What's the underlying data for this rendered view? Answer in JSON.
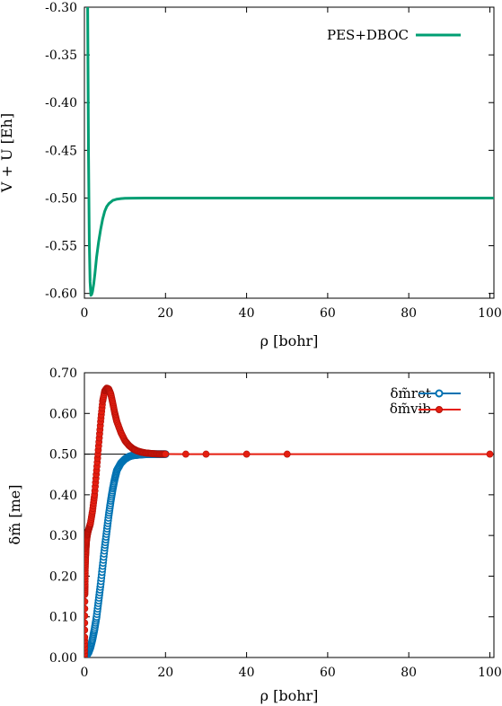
{
  "colors": {
    "pes": "#009e73",
    "rot": "#0072b2",
    "vib": "#e51e10",
    "axis": "#000000",
    "ref_line": "#000000"
  },
  "chart_data": [
    {
      "type": "line",
      "title": "",
      "xlabel": "ρ [bohr]",
      "ylabel": "V + U [Eh]",
      "xlim": [
        0,
        101
      ],
      "ylim": [
        -0.605,
        -0.3
      ],
      "xticks": [
        0,
        20,
        40,
        60,
        80,
        100
      ],
      "xtick_labels": [
        "0",
        "20",
        "40",
        "60",
        "80",
        "100"
      ],
      "yticks": [
        -0.3,
        -0.35,
        -0.4,
        -0.45,
        -0.5,
        -0.55,
        -0.6
      ],
      "ytick_labels": [
        "-0.30",
        "-0.35",
        "-0.40",
        "-0.45",
        "-0.50",
        "-0.55",
        "-0.60"
      ],
      "grid": false,
      "legend": "top-right",
      "series": [
        {
          "name": "PES+DBOC",
          "x": [
            0.8,
            1.0,
            1.2,
            1.4,
            1.6,
            1.8,
            2.0,
            2.3,
            2.6,
            3.0,
            3.5,
            4.0,
            4.5,
            5.0,
            5.5,
            6.0,
            7.0,
            8.0,
            9.0,
            10.0,
            12.0,
            15.0,
            20.0,
            30.0,
            40.0,
            50.0,
            60.0,
            70.0,
            80.0,
            90.0,
            100.0,
            101.0
          ],
          "y": [
            -0.3,
            -0.45,
            -0.545,
            -0.588,
            -0.602,
            -0.601,
            -0.598,
            -0.59,
            -0.579,
            -0.562,
            -0.546,
            -0.533,
            -0.522,
            -0.514,
            -0.509,
            -0.506,
            -0.5025,
            -0.5012,
            -0.5006,
            -0.5003,
            -0.5001,
            -0.5,
            -0.5,
            -0.5,
            -0.5,
            -0.5,
            -0.5,
            -0.5,
            -0.5,
            -0.5,
            -0.5,
            -0.5
          ]
        }
      ]
    },
    {
      "type": "line",
      "title": "",
      "xlabel": "ρ [bohr]",
      "ylabel": "δm̃ [me]",
      "xlim": [
        0,
        101
      ],
      "ylim": [
        0,
        0.7
      ],
      "xticks": [
        0,
        20,
        40,
        60,
        80,
        100
      ],
      "xtick_labels": [
        "0",
        "20",
        "40",
        "60",
        "80",
        "100"
      ],
      "yticks": [
        0,
        0.1,
        0.2,
        0.3,
        0.4,
        0.5,
        0.6,
        0.7
      ],
      "ytick_labels": [
        "0.00",
        "0.10",
        "0.20",
        "0.30",
        "0.40",
        "0.50",
        "0.60",
        "0.70"
      ],
      "grid": false,
      "legend": "top-right",
      "reference_line_y": 0.5,
      "series": [
        {
          "name": "δm̃rot",
          "marker": "open-circle",
          "x": [
            0.05,
            0.3,
            0.6,
            1.0,
            1.5,
            2.0,
            2.5,
            3.0,
            3.5,
            4.0,
            4.5,
            5.0,
            5.5,
            6.0,
            6.5,
            7.0,
            7.5,
            8.0,
            9.0,
            10.0,
            11.0,
            12.0,
            13.0,
            14.0,
            15.0,
            16.0,
            17.0,
            18.0,
            19.0,
            20.0
          ],
          "y": [
            0.0,
            0.002,
            0.006,
            0.012,
            0.025,
            0.045,
            0.07,
            0.1,
            0.14,
            0.18,
            0.225,
            0.27,
            0.31,
            0.35,
            0.385,
            0.415,
            0.44,
            0.46,
            0.478,
            0.488,
            0.494,
            0.497,
            0.498,
            0.499,
            0.4995,
            0.5,
            0.5,
            0.5,
            0.5,
            0.5
          ]
        },
        {
          "name": "δm̃vib",
          "marker": "filled-circle",
          "x": [
            0.02,
            0.05,
            0.1,
            0.15,
            0.2,
            0.3,
            0.4,
            0.5,
            0.7,
            0.9,
            1.2,
            1.5,
            2.0,
            2.5,
            3.0,
            3.5,
            4.0,
            4.5,
            5.0,
            5.5,
            6.0,
            6.5,
            7.0,
            7.5,
            8.0,
            9.0,
            10.0,
            11.0,
            12.0,
            13.0,
            14.0,
            15.0,
            16.0,
            17.0,
            18.0,
            19.0,
            20.0,
            25.0,
            30.0,
            40.0,
            50.0,
            100.0
          ],
          "y": [
            0.0,
            0.05,
            0.155,
            0.18,
            0.22,
            0.25,
            0.27,
            0.285,
            0.3,
            0.31,
            0.32,
            0.33,
            0.36,
            0.4,
            0.46,
            0.52,
            0.58,
            0.63,
            0.655,
            0.662,
            0.66,
            0.648,
            0.625,
            0.6,
            0.58,
            0.553,
            0.533,
            0.521,
            0.513,
            0.508,
            0.505,
            0.503,
            0.502,
            0.501,
            0.5005,
            0.5002,
            0.5001,
            0.5,
            0.5,
            0.5,
            0.5,
            0.5
          ]
        }
      ]
    }
  ]
}
